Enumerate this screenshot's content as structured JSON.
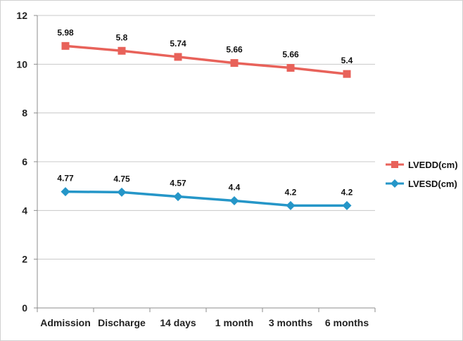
{
  "chart_data": {
    "type": "line",
    "categories": [
      "Admission",
      "Discharge",
      "14 days",
      "1 month",
      "3 months",
      "6 months"
    ],
    "ylim": [
      0,
      12
    ],
    "yticks": [
      0,
      2,
      4,
      6,
      8,
      10,
      12
    ],
    "grid": true,
    "legend_position": "right",
    "series": [
      {
        "name": "LVEDD(cm)",
        "color": "#e8625a",
        "marker": "square",
        "values": [
          10.75,
          10.55,
          10.3,
          10.05,
          9.85,
          9.6
        ],
        "labels": [
          "5.98",
          "5.8",
          "5.74",
          "5.66",
          "5.66",
          "5.4"
        ]
      },
      {
        "name": "LVESD(cm)",
        "color": "#2596c8",
        "marker": "diamond",
        "values": [
          4.77,
          4.75,
          4.57,
          4.4,
          4.2,
          4.2
        ],
        "labels": [
          "4.77",
          "4.75",
          "4.57",
          "4.4",
          "4.2",
          "4.2"
        ]
      }
    ],
    "colors": {
      "grid": "#c8c8c8",
      "axis": "#8c8c8c",
      "frame": "#d0d0d0"
    }
  }
}
